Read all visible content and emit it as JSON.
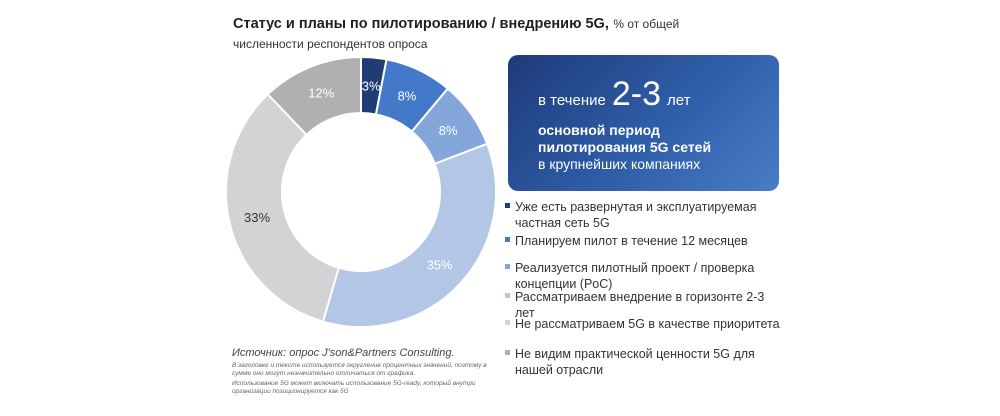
{
  "title": {
    "main": "Статус и планы по пилотированию / внедрению 5G,",
    "suffix": "% от общей",
    "line2": "численности респондентов опроса"
  },
  "callout": {
    "prefix": "в течение",
    "number": "2-3",
    "unit": "лет",
    "bold_line1": "основной период",
    "bold_line2": "пилотирования 5G сетей",
    "line3": "в крупнейших компаниях"
  },
  "source": {
    "main": "Источник: опрос J'son&Partners Consulting.",
    "note1": "В заголовке и тексте используется округление процентных значений, поэтому в сумме они могут незначительно отличаться от графика.",
    "note2": "Использование 5G может включать использование 5G-ready, который внутри организации позиционируется как 5G"
  },
  "chart_data": {
    "type": "pie",
    "unit": "%",
    "colors": [
      "#1f3d73",
      "#4478c8",
      "#85a6da",
      "#b3c6e6",
      "#d3d3d5",
      "#b0b0b0"
    ],
    "series": [
      {
        "name": "Уже есть развернутая и эксплуатируемая частная сеть 5G",
        "value": 3,
        "label": "3%",
        "label_color": "#ffffff"
      },
      {
        "name": "Планируем пилот в течение 12 месяцев",
        "value": 8,
        "label": "8%",
        "label_color": "#ffffff"
      },
      {
        "name": "Реализуется пилотный проект / проверка концепции (PoC)",
        "value": 8,
        "label": "8%",
        "label_color": "#ffffff"
      },
      {
        "name": "Рассматриваем внедрение в горизонте 2-3 лет",
        "value": 35,
        "label": "35%",
        "label_color": "#ffffff"
      },
      {
        "name": "Не рассматриваем 5G в качестве приоритета",
        "value": 33,
        "label": "33%",
        "label_color": "#333333"
      },
      {
        "name": "Не видим практической ценности 5G для нашей отрасли",
        "value": 12,
        "label": "12%",
        "label_color": "#ffffff"
      }
    ]
  }
}
